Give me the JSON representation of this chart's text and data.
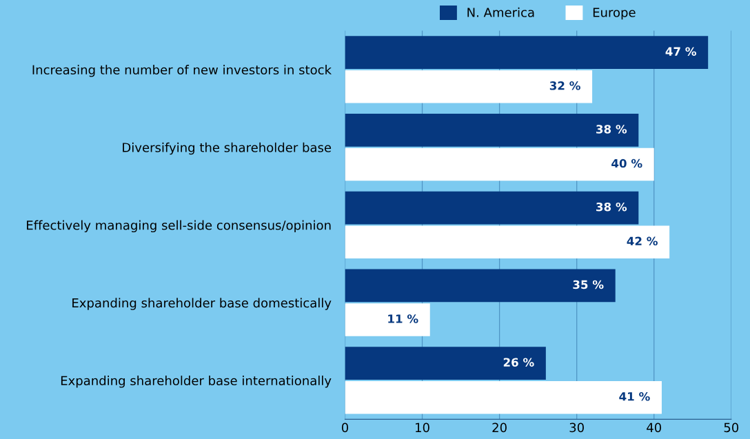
{
  "chart_data": {
    "type": "bar",
    "orientation": "horizontal",
    "categories": [
      "Increasing the number of new investors in stock",
      "Diversifying the shareholder base",
      "Effectively managing sell-side consensus/opinion",
      "Expanding shareholder base domestically",
      "Expanding shareholder base internationally"
    ],
    "series": [
      {
        "name": "N. America",
        "color": "#06387f",
        "values": [
          47,
          38,
          38,
          35,
          26
        ],
        "value_labels": [
          "47 %",
          "38 %",
          "38 %",
          "35 %",
          "26 %"
        ]
      },
      {
        "name": "Europe",
        "color": "#ffffff",
        "values": [
          32,
          40,
          42,
          11,
          41
        ],
        "value_labels": [
          "32 %",
          "40 %",
          "42 %",
          "11 %",
          "41 %"
        ]
      }
    ],
    "xlim": [
      0,
      50
    ],
    "xticks": [
      0,
      10,
      20,
      30,
      40,
      50
    ],
    "grid": "x",
    "legend": "top"
  }
}
